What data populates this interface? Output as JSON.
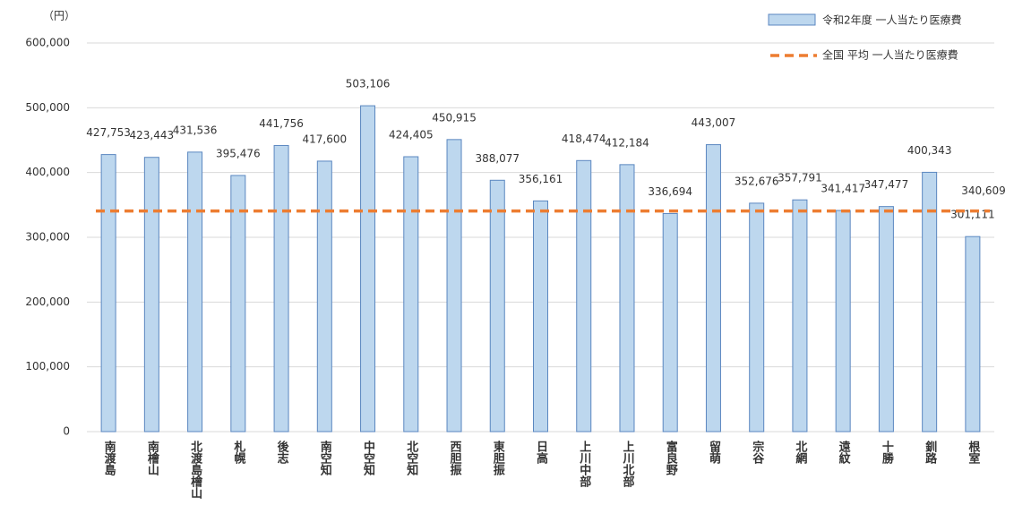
{
  "chart_data": {
    "type": "bar",
    "y_label": "（円）",
    "categories": [
      "南渡島",
      "南檜山",
      "北渡島檜山",
      "札幌",
      "後志",
      "南空知",
      "中空知",
      "北空知",
      "西胆振",
      "東胆振",
      "日高",
      "上川中部",
      "上川北部",
      "富良野",
      "留萌",
      "宗谷",
      "北網",
      "遠紋",
      "十勝",
      "釧路",
      "根室"
    ],
    "series": [
      {
        "name": "令和2年度 一人当たり医療費",
        "color": "#bdd7ee",
        "values": [
          427753,
          423443,
          431536,
          395476,
          441756,
          417600,
          503106,
          424405,
          450915,
          388077,
          356161,
          418474,
          412184,
          336694,
          443007,
          352676,
          357791,
          341417,
          347477,
          400343,
          301111
        ],
        "value_labels": [
          "427,753",
          "423,443",
          "431,536",
          "395,476",
          "441,756",
          "417,600",
          "503,106",
          "424,405",
          "450,915",
          "388,077",
          "356,161",
          "418,474",
          "412,184",
          "336,694",
          "443,007",
          "352,676",
          "357,791",
          "341,417",
          "347,477",
          "400,343",
          "301,111"
        ]
      }
    ],
    "average": {
      "name": "全国 平均 一人当たり医療費",
      "color": "#ed7d31",
      "value": 340609,
      "value_label": "340,609"
    },
    "ylim": [
      0,
      600000
    ],
    "yticks": [
      0,
      {
        "value": 100000,
        "label": "100,000"
      },
      {
        "value": 200000,
        "label": "200,000"
      },
      {
        "value": 300000,
        "label": "300,000"
      },
      {
        "value": 400000,
        "label": "400,000"
      },
      {
        "value": 500000,
        "label": "500,000"
      },
      {
        "value": 600000,
        "label": "600,000"
      }
    ],
    "grid": true
  }
}
